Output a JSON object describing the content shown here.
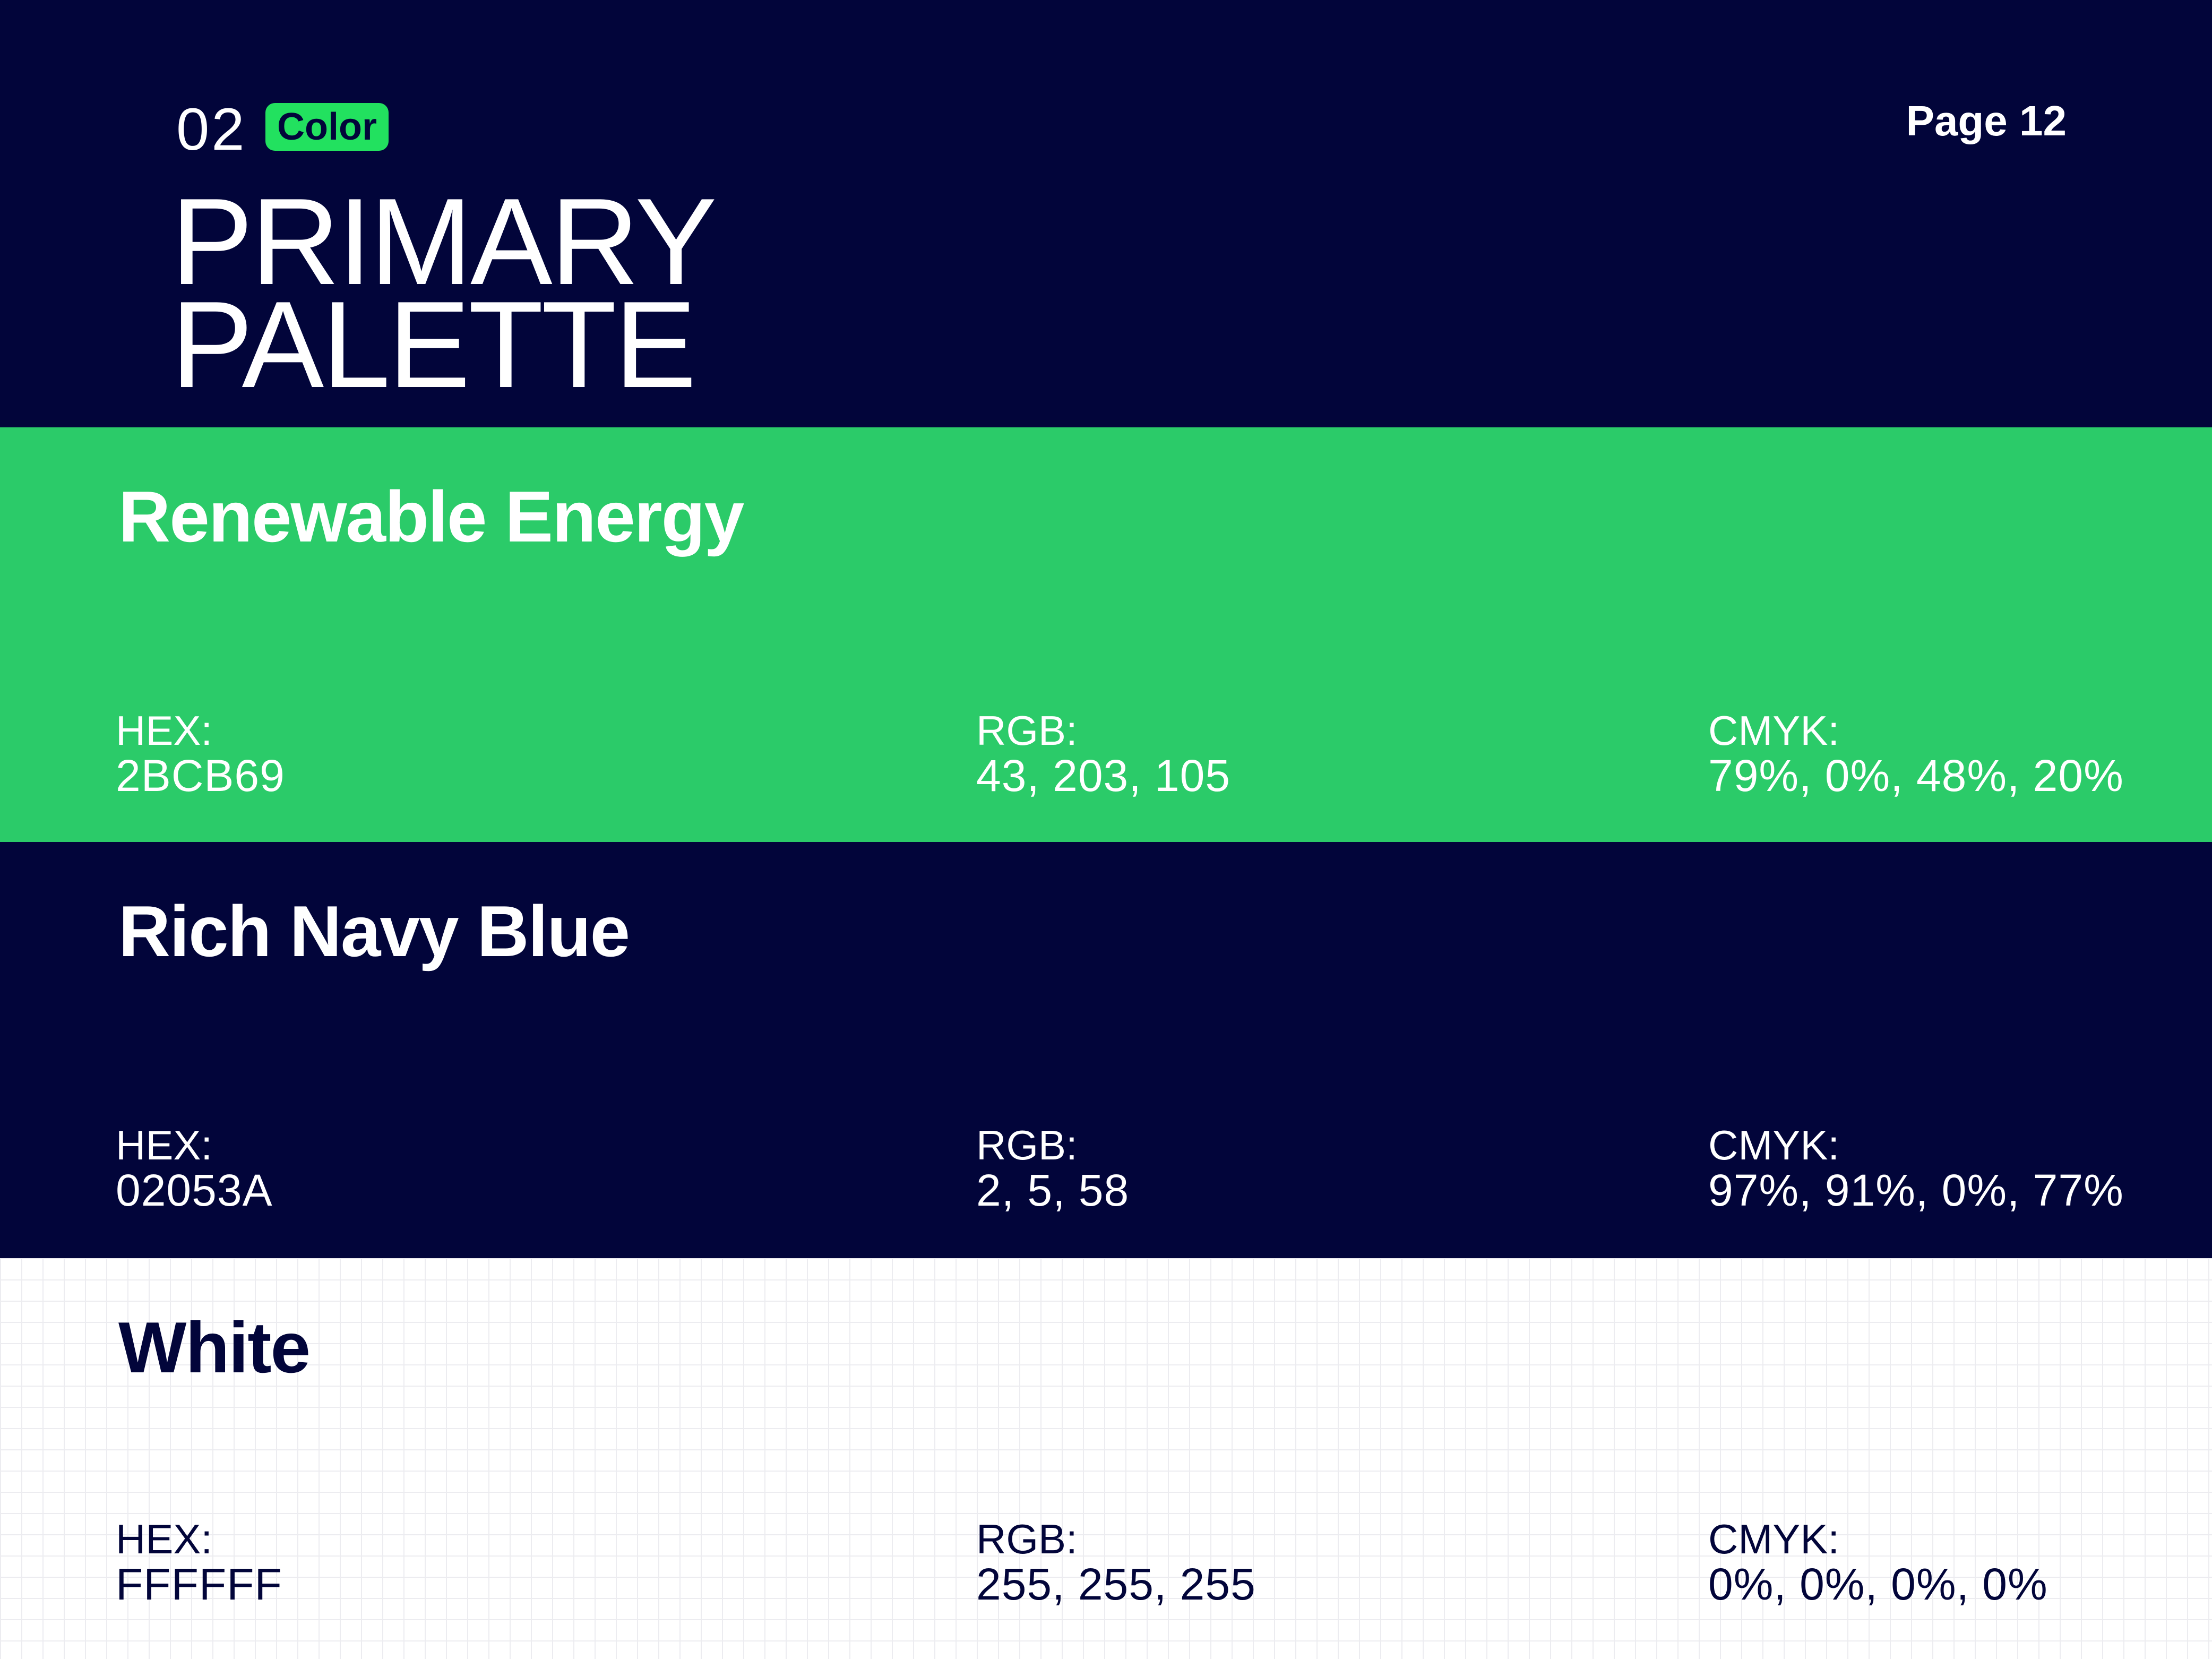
{
  "header": {
    "number": "02",
    "tag": "Color",
    "title": [
      "PRIMARY",
      "PALETTE"
    ],
    "page": "Page 12"
  },
  "swatches": [
    {
      "name": "Renewable Energy",
      "hex_label": "HEX:",
      "hex": "2BCB69",
      "rgb_label": "RGB:",
      "rgb": "43, 203, 105",
      "cmyk_label": "CMYK:",
      "cmyk": "79%, 0%, 48%, 20%"
    },
    {
      "name": "Rich Navy Blue",
      "hex_label": "HEX:",
      "hex": "02053A",
      "rgb_label": "RGB:",
      "rgb": "2, 5, 58",
      "cmyk_label": "CMYK:",
      "cmyk": "97%, 91%, 0%, 77%"
    },
    {
      "name": "White",
      "hex_label": "HEX:",
      "hex": "FFFFFF",
      "rgb_label": "RGB:",
      "rgb": "255, 255, 255",
      "cmyk_label": "CMYK:",
      "cmyk": "0%, 0%, 0%, 0%"
    }
  ]
}
